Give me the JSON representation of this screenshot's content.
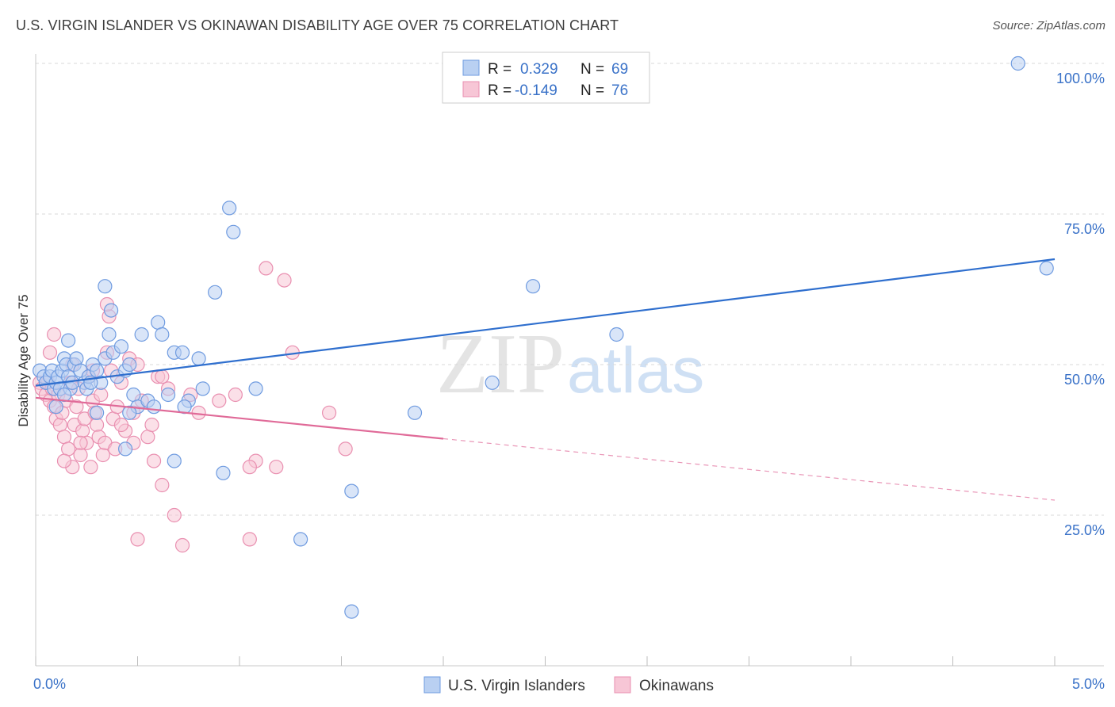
{
  "title": "U.S. VIRGIN ISLANDER VS OKINAWAN DISABILITY AGE OVER 75 CORRELATION CHART",
  "source": "Source: ZipAtlas.com",
  "watermark": {
    "zip": "ZIP",
    "atlas": "atlas"
  },
  "colors": {
    "blue_fill": "#b9d0f2",
    "blue_stroke": "#6f9be0",
    "blue_line": "#2f6fce",
    "pink_fill": "#f7c6d6",
    "pink_stroke": "#e98fb0",
    "pink_line": "#e06a98",
    "axis_text": "#3a72c8",
    "grid": "#d8d8d8"
  },
  "stats_legend": [
    {
      "r_label": "R = ",
      "r_value": "0.329",
      "n_label": "N = ",
      "n_value": "69"
    },
    {
      "r_label": "R = ",
      "r_value": "-0.149",
      "n_label": "N = ",
      "n_value": "76"
    }
  ],
  "chart_data": {
    "type": "scatter",
    "title": "U.S. VIRGIN ISLANDER VS OKINAWAN DISABILITY AGE OVER 75 CORRELATION CHART",
    "xlabel": "",
    "ylabel": "Disability Age Over 75",
    "xlim": [
      0,
      5
    ],
    "ylim": [
      0,
      100
    ],
    "x_tick_labels": [
      "0.0%",
      "5.0%"
    ],
    "y_ticks": [
      25,
      50,
      75,
      100
    ],
    "y_tick_labels": [
      "25.0%",
      "50.0%",
      "75.0%",
      "100.0%"
    ],
    "grid": true,
    "legend_position": "bottom-center",
    "series": [
      {
        "name": "U.S. Virgin Islanders",
        "color": "blue",
        "trend": {
          "x1": 0.0,
          "y1": 46.5,
          "x2": 5.0,
          "y2": 67.5,
          "solid_until": 5.0
        },
        "points": [
          [
            0.02,
            49
          ],
          [
            0.04,
            48
          ],
          [
            0.05,
            47
          ],
          [
            0.07,
            48
          ],
          [
            0.08,
            49
          ],
          [
            0.09,
            46
          ],
          [
            0.1,
            47
          ],
          [
            0.11,
            48
          ],
          [
            0.12,
            46
          ],
          [
            0.13,
            49
          ],
          [
            0.14,
            51
          ],
          [
            0.15,
            50
          ],
          [
            0.16,
            48
          ],
          [
            0.17,
            46
          ],
          [
            0.18,
            47
          ],
          [
            0.19,
            50
          ],
          [
            0.2,
            51
          ],
          [
            0.22,
            49
          ],
          [
            0.24,
            47
          ],
          [
            0.25,
            46
          ],
          [
            0.26,
            48
          ],
          [
            0.28,
            50
          ],
          [
            0.3,
            49
          ],
          [
            0.32,
            47
          ],
          [
            0.34,
            51
          ],
          [
            0.36,
            55
          ],
          [
            0.38,
            52
          ],
          [
            0.4,
            48
          ],
          [
            0.42,
            53
          ],
          [
            0.44,
            49
          ],
          [
            0.46,
            50
          ],
          [
            0.48,
            45
          ],
          [
            0.5,
            43
          ],
          [
            0.52,
            55
          ],
          [
            0.55,
            44
          ],
          [
            0.58,
            43
          ],
          [
            0.6,
            57
          ],
          [
            0.62,
            55
          ],
          [
            0.65,
            45
          ],
          [
            0.68,
            52
          ],
          [
            0.72,
            52
          ],
          [
            0.75,
            44
          ],
          [
            0.8,
            51
          ],
          [
            0.82,
            46
          ],
          [
            0.88,
            62
          ],
          [
            0.92,
            32
          ],
          [
            1.08,
            46
          ],
          [
            1.3,
            21
          ],
          [
            1.55,
            29
          ],
          [
            1.55,
            9
          ],
          [
            1.86,
            42
          ],
          [
            2.24,
            47
          ],
          [
            2.44,
            63
          ],
          [
            2.85,
            55
          ],
          [
            4.82,
            100
          ],
          [
            4.96,
            66
          ],
          [
            0.1,
            43
          ],
          [
            0.14,
            45
          ],
          [
            0.16,
            54
          ],
          [
            0.34,
            63
          ],
          [
            0.37,
            59
          ],
          [
            0.44,
            36
          ],
          [
            0.46,
            42
          ],
          [
            0.68,
            34
          ],
          [
            0.73,
            43
          ],
          [
            0.95,
            76
          ],
          [
            0.97,
            72
          ],
          [
            0.3,
            42
          ],
          [
            0.27,
            47
          ]
        ]
      },
      {
        "name": "Okinawans",
        "color": "pink",
        "trend": {
          "x1": 0.0,
          "y1": 44.5,
          "x2": 5.0,
          "y2": 27.5,
          "solid_until": 2.0
        },
        "points": [
          [
            0.02,
            47
          ],
          [
            0.03,
            46
          ],
          [
            0.05,
            45
          ],
          [
            0.06,
            47
          ],
          [
            0.07,
            44
          ],
          [
            0.08,
            46
          ],
          [
            0.09,
            43
          ],
          [
            0.1,
            41
          ],
          [
            0.11,
            45
          ],
          [
            0.12,
            40
          ],
          [
            0.13,
            42
          ],
          [
            0.14,
            38
          ],
          [
            0.15,
            44
          ],
          [
            0.16,
            36
          ],
          [
            0.17,
            47
          ],
          [
            0.18,
            33
          ],
          [
            0.19,
            40
          ],
          [
            0.2,
            43
          ],
          [
            0.21,
            46
          ],
          [
            0.22,
            35
          ],
          [
            0.23,
            39
          ],
          [
            0.24,
            41
          ],
          [
            0.25,
            37
          ],
          [
            0.26,
            48
          ],
          [
            0.27,
            33
          ],
          [
            0.28,
            44
          ],
          [
            0.29,
            42
          ],
          [
            0.3,
            40
          ],
          [
            0.31,
            38
          ],
          [
            0.32,
            45
          ],
          [
            0.33,
            35
          ],
          [
            0.34,
            37
          ],
          [
            0.35,
            52
          ],
          [
            0.36,
            58
          ],
          [
            0.37,
            49
          ],
          [
            0.38,
            41
          ],
          [
            0.39,
            36
          ],
          [
            0.4,
            43
          ],
          [
            0.42,
            47
          ],
          [
            0.44,
            39
          ],
          [
            0.46,
            51
          ],
          [
            0.48,
            37
          ],
          [
            0.5,
            21
          ],
          [
            0.52,
            44
          ],
          [
            0.55,
            38
          ],
          [
            0.58,
            34
          ],
          [
            0.6,
            48
          ],
          [
            0.62,
            30
          ],
          [
            0.65,
            46
          ],
          [
            0.68,
            25
          ],
          [
            0.72,
            20
          ],
          [
            0.76,
            45
          ],
          [
            0.8,
            42
          ],
          [
            1.05,
            21
          ],
          [
            1.08,
            34
          ],
          [
            1.13,
            66
          ],
          [
            1.18,
            33
          ],
          [
            1.22,
            64
          ],
          [
            1.26,
            52
          ],
          [
            1.44,
            42
          ],
          [
            1.52,
            36
          ],
          [
            0.09,
            55
          ],
          [
            0.18,
            50
          ],
          [
            0.28,
            49
          ],
          [
            0.35,
            60
          ],
          [
            0.5,
            50
          ],
          [
            0.48,
            42
          ],
          [
            0.57,
            40
          ],
          [
            0.62,
            48
          ],
          [
            0.9,
            44
          ],
          [
            0.98,
            45
          ],
          [
            1.05,
            33
          ],
          [
            0.07,
            52
          ],
          [
            0.14,
            34
          ],
          [
            0.22,
            37
          ],
          [
            0.42,
            40
          ]
        ]
      }
    ]
  }
}
